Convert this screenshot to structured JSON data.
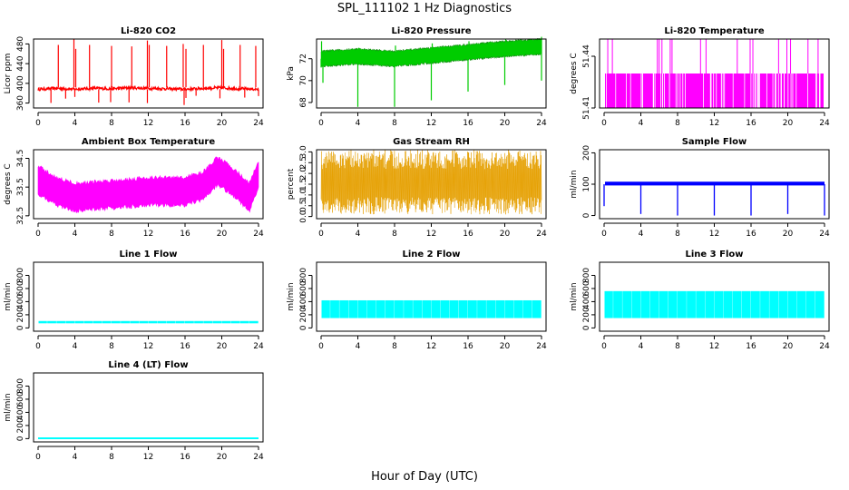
{
  "figure": {
    "title": "SPL_111102  1 Hz Diagnostics",
    "xlabel": "Hour of Day (UTC)"
  },
  "colors": {
    "red": "#ff0000",
    "green": "#00cc00",
    "magenta": "#ff00ff",
    "orange": "#e6a000",
    "blue": "#0000ff",
    "cyan": "#00ffff"
  },
  "chart_data": [
    {
      "type": "line",
      "title": "Li-820 CO2",
      "ylabel": "Licor ppm",
      "xlim": [
        0,
        24
      ],
      "xticks": [
        "0",
        "4",
        "8",
        "12",
        "16",
        "20",
        "24"
      ],
      "ylim": [
        350,
        490
      ],
      "yticks": [
        "360",
        "400",
        "440",
        "480"
      ],
      "series": [
        {
          "color": "red",
          "pattern": "co2",
          "x": [
            0,
            2,
            4,
            6,
            8,
            10,
            12,
            14,
            16,
            18,
            20,
            22,
            24
          ],
          "y": [
            388,
            390,
            388,
            390,
            389,
            391,
            390,
            389,
            388,
            390,
            391,
            389,
            388
          ]
        }
      ]
    },
    {
      "type": "line",
      "title": "Li-820 Pressure",
      "ylabel": "kPa",
      "xlim": [
        0,
        24
      ],
      "xticks": [
        "0",
        "4",
        "8",
        "12",
        "16",
        "20",
        "24"
      ],
      "ylim": [
        67.5,
        73.8
      ],
      "yticks": [
        "68",
        "70",
        "72"
      ],
      "series": [
        {
          "color": "green",
          "pattern": "pressure",
          "x": [
            0,
            4,
            8,
            12,
            16,
            20,
            24
          ],
          "y": [
            72.0,
            72.2,
            72.0,
            72.3,
            72.6,
            72.9,
            73.1
          ]
        }
      ]
    },
    {
      "type": "line",
      "title": "Li-820 Temperature",
      "ylabel": "degrees C",
      "xlim": [
        0,
        24
      ],
      "xticks": [
        "0",
        "4",
        "8",
        "12",
        "16",
        "20",
        "24"
      ],
      "ylim": [
        51.41,
        51.45
      ],
      "yticks": [
        "51.41",
        "51.44"
      ],
      "series": [
        {
          "color": "magenta",
          "pattern": "licortemp",
          "x": [
            0,
            24
          ],
          "y": [
            51.43,
            51.43
          ]
        }
      ]
    },
    {
      "type": "line",
      "title": "Ambient Box Temperature",
      "ylabel": "degrees C",
      "xlim": [
        0,
        24
      ],
      "xticks": [
        "0",
        "4",
        "8",
        "12",
        "16",
        "20",
        "24"
      ],
      "ylim": [
        32.4,
        34.8
      ],
      "yticks": [
        "32.5",
        "33.5",
        "34.5"
      ],
      "series": [
        {
          "color": "magenta",
          "pattern": "boxtemp",
          "x": [
            0,
            2,
            4,
            8,
            12,
            16,
            18,
            19.5,
            21,
            23,
            24
          ],
          "y": [
            33.7,
            33.3,
            33.1,
            33.2,
            33.3,
            33.3,
            33.5,
            34.0,
            33.7,
            33.1,
            33.9
          ]
        }
      ]
    },
    {
      "type": "line",
      "title": "Gas Stream RH",
      "ylabel": "percent",
      "xlim": [
        0,
        24
      ],
      "xticks": [
        "0",
        "4",
        "8",
        "12",
        "16",
        "20",
        "24"
      ],
      "ylim": [
        -0.1,
        3.1
      ],
      "yticks": [
        "0.0",
        "0.5",
        "1.0",
        "1.5",
        "2.0",
        "2.5",
        "3.0"
      ],
      "series": [
        {
          "color": "orange",
          "pattern": "rh",
          "x": [
            0,
            24
          ],
          "y": [
            1.6,
            1.6
          ]
        }
      ]
    },
    {
      "type": "line",
      "title": "Sample Flow",
      "ylabel": "ml/min",
      "xlim": [
        0,
        24
      ],
      "xticks": [
        "0",
        "4",
        "8",
        "12",
        "16",
        "20",
        "24"
      ],
      "ylim": [
        -10,
        210
      ],
      "yticks": [
        "0",
        "100",
        "200"
      ],
      "series": [
        {
          "color": "blue",
          "pattern": "sampleflow",
          "x": [
            0,
            24
          ],
          "y": [
            102,
            102
          ]
        }
      ]
    },
    {
      "type": "line",
      "title": "Line 1 Flow",
      "ylabel": "ml/min",
      "xlim": [
        0,
        24
      ],
      "xticks": [
        "0",
        "4",
        "8",
        "12",
        "16",
        "20",
        "24"
      ],
      "ylim": [
        -50,
        1000
      ],
      "yticks": [
        "0",
        "200",
        "400",
        "600",
        "800"
      ],
      "series": [
        {
          "color": "cyan",
          "pattern": "band",
          "x": [
            0,
            24
          ],
          "y": [
            85,
            85
          ],
          "low": 70,
          "high": 105
        }
      ]
    },
    {
      "type": "line",
      "title": "Line 2 Flow",
      "ylabel": "ml/min",
      "xlim": [
        0,
        24
      ],
      "xticks": [
        "0",
        "4",
        "8",
        "12",
        "16",
        "20",
        "24"
      ],
      "ylim": [
        -50,
        1000
      ],
      "yticks": [
        "0",
        "200",
        "400",
        "600",
        "800"
      ],
      "series": [
        {
          "color": "cyan",
          "pattern": "band",
          "x": [
            0,
            24
          ],
          "y": [
            280,
            280
          ],
          "low": 150,
          "high": 420
        }
      ]
    },
    {
      "type": "line",
      "title": "Line 3 Flow",
      "ylabel": "ml/min",
      "xlim": [
        0,
        24
      ],
      "xticks": [
        "0",
        "4",
        "8",
        "12",
        "16",
        "20",
        "24"
      ],
      "ylim": [
        -50,
        1000
      ],
      "yticks": [
        "0",
        "200",
        "400",
        "600",
        "800"
      ],
      "series": [
        {
          "color": "cyan",
          "pattern": "band",
          "x": [
            0,
            24
          ],
          "y": [
            380,
            380
          ],
          "low": 150,
          "high": 560
        }
      ]
    },
    {
      "type": "line",
      "title": "Line 4 (LT) Flow",
      "ylabel": "ml/min",
      "xlim": [
        0,
        24
      ],
      "xticks": [
        "0",
        "4",
        "8",
        "12",
        "16",
        "20",
        "24"
      ],
      "ylim": [
        -50,
        1000
      ],
      "yticks": [
        "0",
        "200",
        "400",
        "600",
        "800"
      ],
      "series": [
        {
          "color": "cyan",
          "pattern": "flat",
          "x": [
            0,
            24
          ],
          "y": [
            5,
            5
          ]
        }
      ]
    }
  ]
}
